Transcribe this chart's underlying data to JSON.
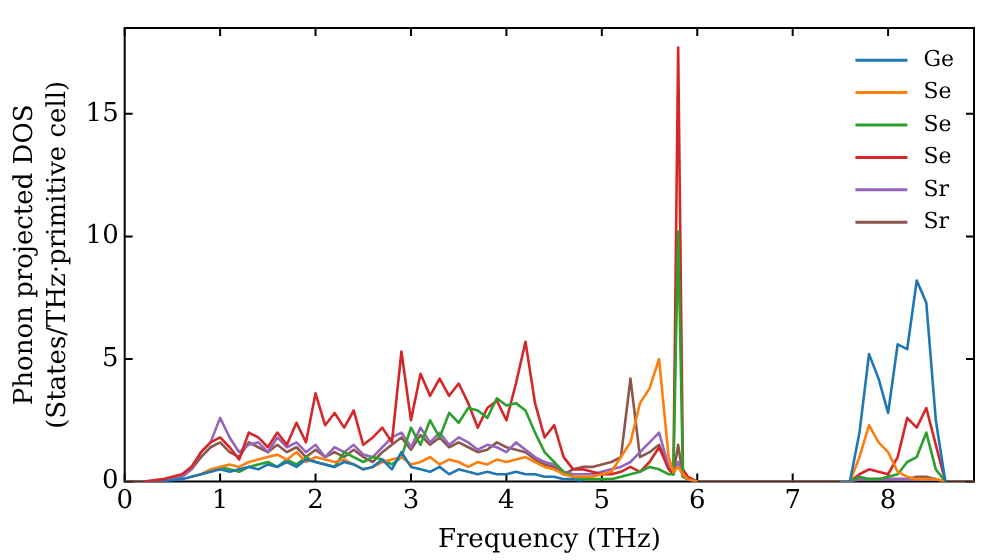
{
  "chart_data": {
    "type": "line",
    "xlabel": "Frequency (THz)",
    "ylabel": "Phonon projected DOS\n(States/THz·primitive cell)",
    "x": [
      0,
      0.2,
      0.4,
      0.6,
      0.7,
      0.8,
      0.9,
      1.0,
      1.1,
      1.2,
      1.3,
      1.4,
      1.5,
      1.6,
      1.7,
      1.8,
      1.9,
      2.0,
      2.1,
      2.2,
      2.3,
      2.4,
      2.5,
      2.6,
      2.7,
      2.8,
      2.9,
      3.0,
      3.1,
      3.2,
      3.3,
      3.4,
      3.5,
      3.6,
      3.7,
      3.8,
      3.9,
      4.0,
      4.1,
      4.2,
      4.3,
      4.4,
      4.5,
      4.6,
      4.7,
      4.8,
      4.9,
      5.0,
      5.1,
      5.2,
      5.3,
      5.4,
      5.5,
      5.6,
      5.7,
      5.75,
      5.8,
      5.85,
      5.9,
      6.0,
      6.5,
      7.0,
      7.5,
      7.6,
      7.7,
      7.8,
      7.9,
      8.0,
      8.1,
      8.2,
      8.3,
      8.4,
      8.5,
      8.6,
      8.9
    ],
    "series": [
      {
        "name": "Ge",
        "color": "#1f77b4",
        "values": [
          null,
          null,
          0,
          0.1,
          0.2,
          0.3,
          0.4,
          0.5,
          0.4,
          0.5,
          0.6,
          0.5,
          0.7,
          0.6,
          0.8,
          0.6,
          0.9,
          0.8,
          0.7,
          0.6,
          0.8,
          0.7,
          0.5,
          0.6,
          0.9,
          0.5,
          1.2,
          0.6,
          0.5,
          0.4,
          0.6,
          0.3,
          0.5,
          0.4,
          0.3,
          0.4,
          0.3,
          0.3,
          0.4,
          0.3,
          0.3,
          0.2,
          0.2,
          0.1,
          0.1,
          0,
          null,
          null,
          null,
          null,
          null,
          null,
          null,
          null,
          null,
          null,
          null,
          null,
          null,
          null,
          null,
          null,
          0,
          0,
          2.0,
          5.2,
          4.2,
          2.8,
          5.6,
          5.4,
          8.2,
          7.3,
          2.5,
          0,
          null
        ]
      },
      {
        "name": "Se",
        "color": "#ff7f0e",
        "values": [
          null,
          null,
          null,
          null,
          0.2,
          0.3,
          0.5,
          0.6,
          0.7,
          0.6,
          0.8,
          0.9,
          1.0,
          1.1,
          0.9,
          1.2,
          0.8,
          1.0,
          0.9,
          0.8,
          0.9,
          0.7,
          0.5,
          0.6,
          0.8,
          0.9,
          1.0,
          0.7,
          0.8,
          1.0,
          0.7,
          0.9,
          0.8,
          0.6,
          0.8,
          0.7,
          0.9,
          0.8,
          0.9,
          1.0,
          0.8,
          0.6,
          0.5,
          0.3,
          0.2,
          0.2,
          0.2,
          0.3,
          0.4,
          1.0,
          1.6,
          3.2,
          3.8,
          5.0,
          1.0,
          0.4,
          0.6,
          0.3,
          0.1,
          0,
          null,
          null,
          0,
          0,
          1.0,
          2.3,
          1.6,
          1.2,
          0.4,
          0.2,
          0.1,
          0.1,
          0.1,
          0,
          null
        ]
      },
      {
        "name": "Se",
        "color": "#2ca02c",
        "values": [
          null,
          null,
          null,
          null,
          null,
          null,
          0.4,
          0.6,
          0.5,
          0.4,
          0.6,
          0.7,
          0.8,
          0.6,
          0.9,
          0.7,
          1.0,
          0.8,
          0.7,
          0.6,
          1.2,
          1.0,
          0.8,
          1.0,
          0.9,
          0.7,
          1.0,
          2.2,
          1.5,
          2.5,
          1.8,
          2.8,
          2.4,
          3.0,
          2.9,
          2.6,
          3.4,
          3.1,
          3.2,
          2.9,
          2.0,
          1.2,
          0.8,
          0.4,
          0.2,
          0.1,
          0.1,
          0.1,
          0.1,
          0.2,
          0.3,
          0.4,
          0.6,
          0.5,
          0.3,
          0.3,
          10.2,
          0.2,
          0.1,
          0,
          null,
          null,
          0,
          0,
          0.2,
          0.1,
          0.1,
          0.2,
          0.3,
          0.8,
          1.0,
          2.0,
          0.5,
          0,
          null
        ]
      },
      {
        "name": "Se",
        "color": "#d62728",
        "values": [
          null,
          0,
          0.1,
          0.3,
          0.6,
          1.2,
          1.6,
          1.8,
          1.4,
          0.9,
          2.0,
          1.8,
          1.4,
          2.0,
          1.5,
          2.4,
          1.6,
          3.6,
          2.3,
          2.8,
          2.2,
          2.9,
          1.5,
          1.8,
          2.2,
          1.6,
          5.3,
          2.5,
          4.4,
          3.5,
          4.2,
          3.5,
          4.0,
          3.2,
          2.2,
          3.0,
          3.3,
          2.5,
          4.0,
          5.7,
          3.2,
          1.8,
          2.3,
          1.0,
          0.5,
          0.5,
          0.4,
          0.3,
          0.3,
          0.4,
          0.6,
          0.4,
          0.8,
          1.4,
          0.5,
          0.3,
          17.7,
          0.5,
          0.2,
          0,
          null,
          null,
          0,
          0,
          0.3,
          0.5,
          0.4,
          0.3,
          1.0,
          2.6,
          2.2,
          3.0,
          1.5,
          0,
          null
        ]
      },
      {
        "name": "Sr",
        "color": "#9467bd",
        "values": [
          null,
          0,
          0,
          0.2,
          0.5,
          1.2,
          1.6,
          2.6,
          1.8,
          1.2,
          1.5,
          1.6,
          1.2,
          1.8,
          1.4,
          1.6,
          1.2,
          1.5,
          1.0,
          1.4,
          1.2,
          1.5,
          1.1,
          1.0,
          1.4,
          1.8,
          2.0,
          1.4,
          2.2,
          1.6,
          2.0,
          1.5,
          1.8,
          1.6,
          1.3,
          1.5,
          1.4,
          1.2,
          1.6,
          1.3,
          1.0,
          0.8,
          0.7,
          0.4,
          0.3,
          0.3,
          0.3,
          0.4,
          0.5,
          0.6,
          0.8,
          1.2,
          1.6,
          2.0,
          0.6,
          0.3,
          0.8,
          0.2,
          0.1,
          0,
          null,
          null,
          0,
          0,
          0.1,
          0.1,
          0.1,
          0.1,
          0.1,
          0.1,
          0.1,
          0.1,
          0.1,
          0,
          null
        ]
      },
      {
        "name": "Sr",
        "color": "#8c564b",
        "values": [
          0,
          0,
          0,
          0.2,
          0.5,
          1.0,
          1.4,
          1.6,
          1.2,
          1.0,
          1.6,
          1.4,
          1.2,
          1.5,
          1.2,
          1.4,
          1.0,
          1.3,
          1.0,
          1.2,
          1.0,
          1.3,
          1.0,
          0.8,
          1.2,
          1.5,
          1.8,
          1.3,
          1.9,
          1.5,
          1.8,
          1.4,
          1.6,
          1.4,
          1.2,
          1.3,
          1.6,
          1.4,
          1.3,
          1.2,
          0.9,
          0.7,
          0.6,
          0.3,
          0.5,
          0.6,
          0.6,
          0.7,
          0.8,
          1.0,
          4.2,
          1.0,
          1.2,
          1.5,
          0.6,
          0.3,
          1.5,
          0.2,
          0.1,
          0,
          0,
          0,
          0,
          0,
          0.1,
          0.1,
          0.1,
          0.1,
          0.1,
          0.1,
          0.2,
          0.2,
          0.1,
          0,
          0
        ]
      }
    ],
    "xlim": [
      0,
      8.9
    ],
    "xticks": [
      0,
      1,
      2,
      3,
      4,
      5,
      6,
      7,
      8
    ],
    "ylim": [
      0,
      18.5
    ],
    "yticks": [
      0,
      5,
      10,
      15
    ],
    "grid": false,
    "legend": "top right",
    "marker": "none",
    "line_style": "solid"
  }
}
